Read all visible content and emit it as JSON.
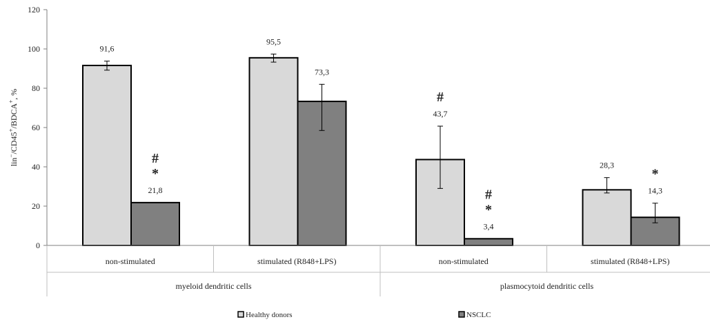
{
  "chart_data": {
    "type": "bar",
    "ylabel_parts": [
      "lin",
      "−",
      "/CD45",
      "+",
      "/BDCA",
      "+",
      ", %"
    ],
    "ylim": [
      0,
      120
    ],
    "yticks": [
      0,
      20,
      40,
      60,
      80,
      100,
      120
    ],
    "grid": false,
    "legend_position": "bottom",
    "groups": [
      {
        "label": "myeloid dendritic cells",
        "categories": [
          "non-stimulated",
          "stimulated (R848+LPS)"
        ]
      },
      {
        "label": "plasmocytoid dendritic cells",
        "categories": [
          "non-stimulated",
          "stimulated (R848+LPS)"
        ]
      }
    ],
    "series": [
      {
        "name": "Healthy donors",
        "color": "#d9d9d9",
        "values": [
          91.6,
          95.5,
          43.7,
          28.3
        ],
        "value_labels": [
          "91,6",
          "95,5",
          "43,7",
          "28,3"
        ],
        "error_low": [
          89.2,
          93.3,
          29.0,
          26.7
        ],
        "error_high": [
          93.8,
          97.4,
          60.7,
          34.5
        ],
        "markers": [
          "",
          "",
          "#",
          ""
        ]
      },
      {
        "name": "NSCLC",
        "color": "#808080",
        "values": [
          21.8,
          73.3,
          3.4,
          14.3
        ],
        "value_labels": [
          "21,8",
          "73,3",
          "3,4",
          "14,3"
        ],
        "error_low": [
          21.8,
          58.5,
          3.4,
          11.5
        ],
        "error_high": [
          21.8,
          82.0,
          3.4,
          21.5
        ],
        "markers": [
          "#\n*",
          "",
          "#\n*",
          "*"
        ]
      }
    ]
  }
}
